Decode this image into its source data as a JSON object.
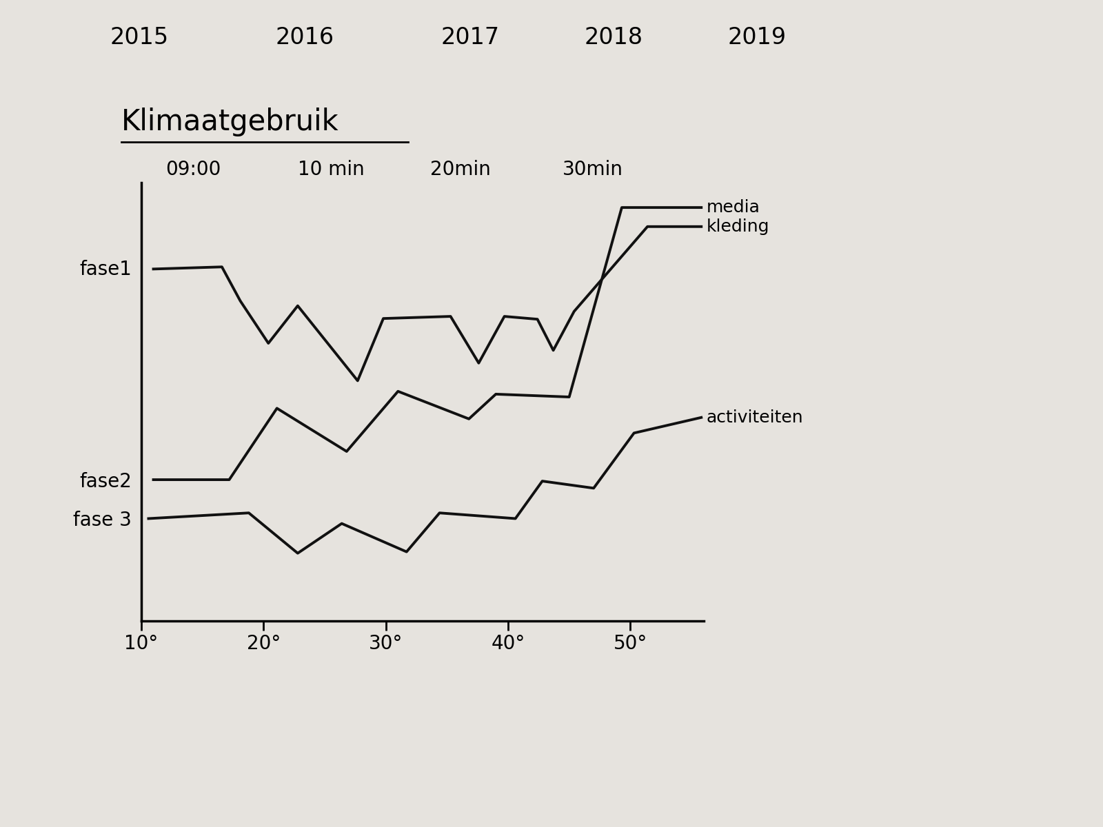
{
  "chart_data": {
    "type": "line",
    "title": "Klimaatgebruik",
    "annotations": [
      "2015",
      "2016",
      "2017",
      "2018",
      "2019"
    ],
    "time_labels": [
      "09:00",
      "10 min",
      "20min",
      "30min"
    ],
    "xlim": [
      10,
      56
    ],
    "xticks": [
      {
        "value": 10,
        "label": "10°"
      },
      {
        "value": 20,
        "label": "20°"
      },
      {
        "value": 30,
        "label": "30°"
      },
      {
        "value": 40,
        "label": "40°"
      },
      {
        "value": 50,
        "label": "50°"
      }
    ],
    "ylim": [
      0,
      62
    ],
    "yticks": [
      {
        "value": 14.5,
        "label": "fase 3"
      },
      {
        "value": 20,
        "label": "fase2"
      },
      {
        "value": 50,
        "label": "fase1"
      }
    ],
    "grid": false,
    "series": [
      {
        "name": "kleding",
        "color": "#111111",
        "x": [
          11.0,
          16.6,
          18.1,
          20.4,
          22.8,
          27.7,
          29.8,
          35.3,
          37.6,
          39.7,
          42.4,
          43.7,
          45.4,
          51.4,
          55.8
        ],
        "values": [
          49.8,
          50.1,
          45.3,
          39.3,
          44.6,
          34.0,
          42.8,
          43.1,
          36.5,
          43.1,
          42.7,
          38.3,
          43.8,
          55.8,
          55.8
        ]
      },
      {
        "name": "media",
        "color": "#111111",
        "x": [
          11.0,
          17.2,
          21.1,
          26.8,
          31.0,
          36.8,
          39.0,
          45.0,
          49.3,
          55.8
        ],
        "values": [
          20.0,
          20.0,
          30.1,
          24.0,
          32.5,
          28.6,
          32.1,
          31.7,
          58.5,
          58.5
        ]
      },
      {
        "name": "activiteiten",
        "color": "#111111",
        "x": [
          10.6,
          18.8,
          22.8,
          26.4,
          31.7,
          34.4,
          40.6,
          42.8,
          47.0,
          50.3,
          55.8
        ],
        "values": [
          14.5,
          15.3,
          9.6,
          13.8,
          9.8,
          15.3,
          14.5,
          19.8,
          18.8,
          26.6,
          28.8
        ]
      }
    ]
  }
}
